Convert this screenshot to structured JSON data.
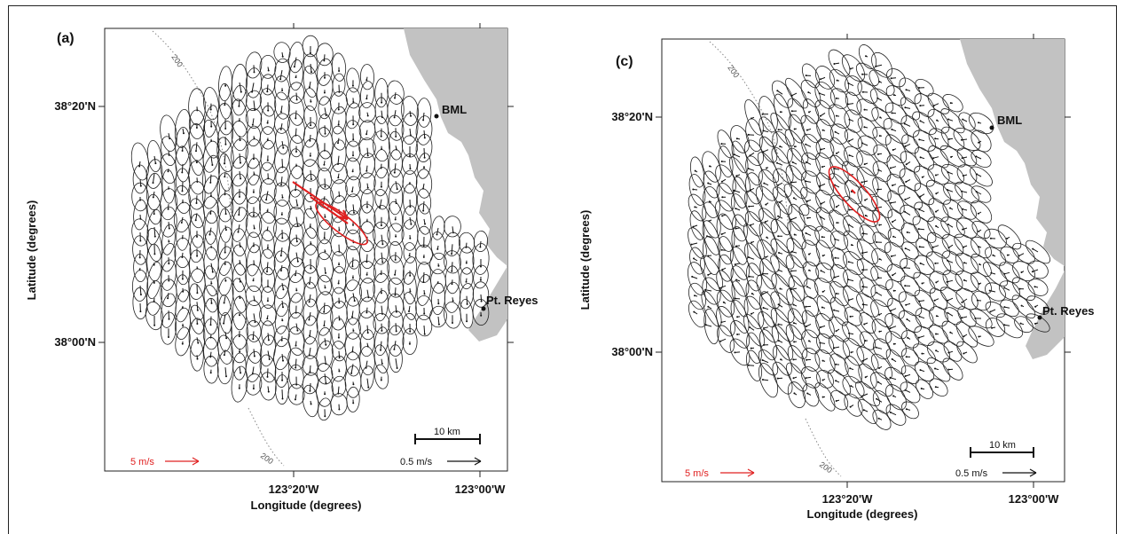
{
  "figure": {
    "panels": [
      {
        "id": "a",
        "label": "(a)",
        "lat_ticks": [
          "38°20'N",
          "38°00'N"
        ],
        "lon_ticks": [
          "123°20'W",
          "123°00'W"
        ],
        "xlabel": "Longitude (degrees)",
        "ylabel": "Latitude (degrees)",
        "places": [
          "BML",
          "Pt. Reyes"
        ],
        "isobath": "200",
        "scale_bar": "10 km",
        "legend_red": "5 m/s",
        "legend_black": "0.5 m/s",
        "highlight_seed": 0.62
      },
      {
        "id": "c",
        "label": "(c)",
        "lat_ticks": [
          "38°20'N",
          "38°00'N"
        ],
        "lon_ticks": [
          "123°20'W",
          "123°00'W"
        ],
        "xlabel": "Longitude (degrees)",
        "ylabel": "Latitude (degrees)",
        "places": [
          "BML",
          "Pt. Reyes"
        ],
        "isobath": "200",
        "scale_bar": "10 km",
        "legend_red": "5 m/s",
        "legend_black": "0.5 m/s",
        "highlight_seed": 0.35
      }
    ],
    "colors": {
      "land": "#c2c2c2",
      "ellipse": "#222222",
      "highlight": "#e02020",
      "isobath": "#888888"
    }
  }
}
